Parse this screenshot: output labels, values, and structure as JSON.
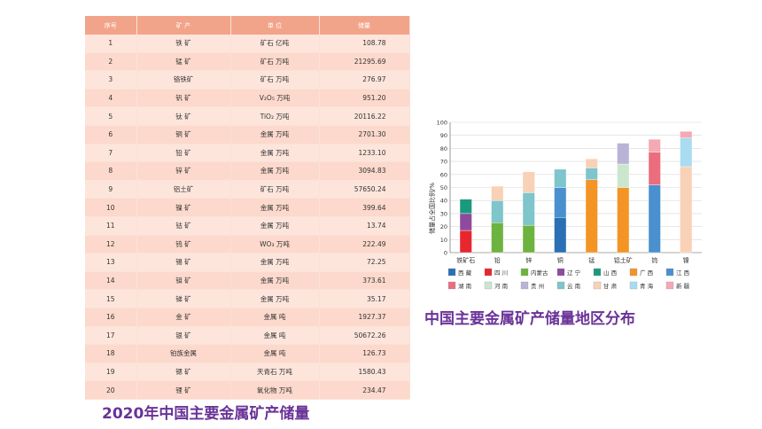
{
  "table": {
    "headers": [
      "序号",
      "矿  产",
      "单  位",
      "储量"
    ],
    "rows": [
      [
        "1",
        "铁  矿",
        "矿石 亿吨",
        "108.78"
      ],
      [
        "2",
        "锰  矿",
        "矿石 万吨",
        "21295.69"
      ],
      [
        "3",
        "铬铁矿",
        "矿石 万吨",
        "276.97"
      ],
      [
        "4",
        "钒  矿",
        "V₂O₅ 万吨",
        "951.20"
      ],
      [
        "5",
        "钛  矿",
        "TiO₂ 万吨",
        "20116.22"
      ],
      [
        "6",
        "铜  矿",
        "金属 万吨",
        "2701.30"
      ],
      [
        "7",
        "铅  矿",
        "金属 万吨",
        "1233.10"
      ],
      [
        "8",
        "锌  矿",
        "金属 万吨",
        "3094.83"
      ],
      [
        "9",
        "铝土矿",
        "矿石 万吨",
        "57650.24"
      ],
      [
        "10",
        "镍  矿",
        "金属 万吨",
        "399.64"
      ],
      [
        "11",
        "钴  矿",
        "金属 万吨",
        "13.74"
      ],
      [
        "12",
        "钨  矿",
        "WO₃ 万吨",
        "222.49"
      ],
      [
        "13",
        "锡  矿",
        "金属 万吨",
        "72.25"
      ],
      [
        "14",
        "钼  矿",
        "金属 万吨",
        "373.61"
      ],
      [
        "15",
        "锑  矿",
        "金属 万吨",
        "35.17"
      ],
      [
        "16",
        "金  矿",
        "金属 吨",
        "1927.37"
      ],
      [
        "17",
        "银  矿",
        "金属 吨",
        "50672.26"
      ],
      [
        "18",
        "铂族金属",
        "金属 吨",
        "126.73"
      ],
      [
        "19",
        "锶  矿",
        "天青石 万吨",
        "1580.43"
      ],
      [
        "20",
        "锂  矿",
        "氧化物 万吨",
        "234.47"
      ]
    ],
    "caption": "2020年中国主要金属矿产储量"
  },
  "chart_caption": "中国主要金属矿产储量地区分布",
  "chart_data": {
    "type": "bar",
    "stacked": true,
    "ylabel": "储量占全国比例/%",
    "ylim": [
      0,
      100
    ],
    "yticks": [
      0,
      10,
      20,
      30,
      40,
      50,
      60,
      70,
      80,
      90,
      100
    ],
    "grid": true,
    "legend_position": "bottom",
    "categories": [
      "铁矿石",
      "铅",
      "锌",
      "铜",
      "锰",
      "铝土矿",
      "钨",
      "镍"
    ],
    "series": [
      {
        "name": "西 藏",
        "color": "#2b6fb5",
        "values": [
          0,
          0,
          0,
          27,
          0,
          0,
          0,
          0
        ]
      },
      {
        "name": "四 川",
        "color": "#e8262e",
        "values": [
          17,
          0,
          0,
          0,
          0,
          0,
          0,
          0
        ]
      },
      {
        "name": "内蒙古",
        "color": "#6db33f",
        "values": [
          0,
          23,
          21,
          0,
          0,
          0,
          0,
          0
        ]
      },
      {
        "name": "辽 宁",
        "color": "#8e4a9e",
        "values": [
          13,
          0,
          0,
          0,
          0,
          0,
          0,
          0
        ]
      },
      {
        "name": "山 西",
        "color": "#1a9a7d",
        "values": [
          11,
          0,
          0,
          0,
          0,
          0,
          0,
          0
        ]
      },
      {
        "name": "广 西",
        "color": "#f39425",
        "values": [
          0,
          0,
          0,
          0,
          56,
          50,
          0,
          0
        ]
      },
      {
        "name": "江 西",
        "color": "#4a90cf",
        "values": [
          0,
          0,
          0,
          23,
          0,
          0,
          52,
          0
        ]
      },
      {
        "name": "湖 南",
        "color": "#ea6e7e",
        "values": [
          0,
          0,
          0,
          0,
          0,
          0,
          25,
          0
        ]
      },
      {
        "name": "河 南",
        "color": "#cbe6cf",
        "values": [
          0,
          0,
          0,
          0,
          0,
          18,
          0,
          0
        ]
      },
      {
        "name": "贵 州",
        "color": "#b9b3d6",
        "values": [
          0,
          0,
          0,
          0,
          0,
          16,
          0,
          0
        ]
      },
      {
        "name": "云 南",
        "color": "#7ec5cc",
        "values": [
          0,
          17,
          25,
          14,
          9,
          0,
          0,
          0
        ]
      },
      {
        "name": "甘 肃",
        "color": "#f9d1b6",
        "values": [
          0,
          11,
          16,
          0,
          7,
          0,
          0,
          66
        ]
      },
      {
        "name": "青 海",
        "color": "#a9dcf0",
        "values": [
          0,
          0,
          0,
          0,
          0,
          0,
          0,
          22
        ]
      },
      {
        "name": "新 疆",
        "color": "#f4a9b4",
        "values": [
          0,
          0,
          0,
          0,
          0,
          0,
          10,
          5
        ]
      }
    ]
  }
}
